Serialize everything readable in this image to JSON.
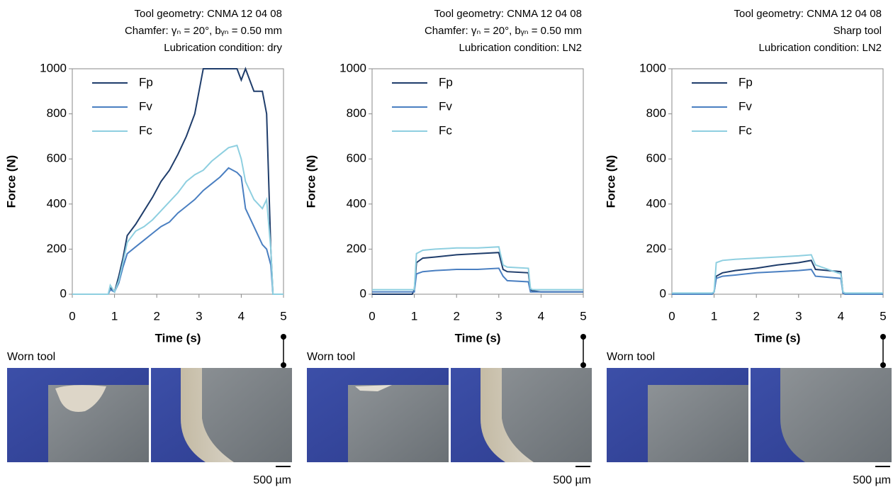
{
  "chart_data": [
    {
      "type": "line",
      "title": [
        "Tool geometry: CNMA 12 04 08",
        "Chamfer: γₙ = 20°, bᵧₙ = 0.50 mm",
        "Lubrication condition: dry"
      ],
      "x_label": "Time (s)",
      "y_label": "Force (N)",
      "x": [
        0,
        0.85,
        0.9,
        1.0,
        1.1,
        1.2,
        1.3,
        1.5,
        1.7,
        1.9,
        2.1,
        2.3,
        2.5,
        2.7,
        2.9,
        3.1,
        3.3,
        3.5,
        3.7,
        3.9,
        4.0,
        4.1,
        4.3,
        4.5,
        4.6,
        4.7,
        4.75,
        4.8,
        5
      ],
      "series": [
        {
          "name": "Fp",
          "color": "#1f3d6b",
          "values": [
            0,
            0,
            30,
            10,
            80,
            160,
            260,
            310,
            370,
            430,
            500,
            550,
            620,
            700,
            800,
            1000,
            1000,
            1000,
            1000,
            1000,
            950,
            1000,
            900,
            900,
            800,
            200,
            0,
            0,
            0
          ]
        },
        {
          "name": "Fv",
          "color": "#4a7fc1",
          "values": [
            0,
            0,
            20,
            10,
            50,
            120,
            180,
            210,
            240,
            270,
            300,
            320,
            360,
            390,
            420,
            460,
            490,
            520,
            560,
            540,
            520,
            380,
            300,
            220,
            200,
            130,
            0,
            0,
            0
          ]
        },
        {
          "name": "Fc",
          "color": "#8ecfe0",
          "values": [
            0,
            0,
            40,
            10,
            60,
            140,
            230,
            280,
            300,
            330,
            370,
            410,
            450,
            500,
            530,
            550,
            590,
            620,
            650,
            660,
            600,
            500,
            420,
            380,
            420,
            200,
            0,
            0,
            0
          ]
        }
      ],
      "xlim": [
        0,
        5
      ],
      "xticks": [
        0,
        1,
        2,
        3,
        4,
        5
      ],
      "ylim": [
        0,
        1000
      ],
      "yticks": [
        0,
        200,
        400,
        600,
        800,
        1000
      ]
    },
    {
      "type": "line",
      "title": [
        "Tool geometry: CNMA 12 04 08",
        "Chamfer: γₙ = 20°, bᵧₙ = 0.50 mm",
        "Lubrication condition: LN2"
      ],
      "x_label": "Time (s)",
      "y_label": "Force (N)",
      "x": [
        0,
        0.95,
        1.0,
        1.05,
        1.2,
        1.5,
        2,
        2.5,
        3,
        3.1,
        3.2,
        3.7,
        3.75,
        3.8,
        4,
        5
      ],
      "series": [
        {
          "name": "Fp",
          "color": "#1f3d6b",
          "values": [
            0,
            0,
            20,
            140,
            160,
            165,
            175,
            180,
            185,
            110,
            100,
            95,
            20,
            15,
            10,
            10
          ]
        },
        {
          "name": "Fv",
          "color": "#4a7fc1",
          "values": [
            10,
            10,
            10,
            90,
            100,
            105,
            110,
            110,
            115,
            80,
            60,
            55,
            10,
            10,
            10,
            10
          ]
        },
        {
          "name": "Fc",
          "color": "#8ecfe0",
          "values": [
            20,
            20,
            20,
            180,
            195,
            200,
            205,
            205,
            210,
            130,
            120,
            115,
            25,
            20,
            20,
            20
          ]
        }
      ],
      "xlim": [
        0,
        5
      ],
      "xticks": [
        0,
        1,
        2,
        3,
        4,
        5
      ],
      "ylim": [
        0,
        1000
      ],
      "yticks": [
        0,
        200,
        400,
        600,
        800,
        1000
      ]
    },
    {
      "type": "line",
      "title": [
        "Tool geometry: CNMA 12 04 08",
        "Sharp tool",
        "Lubrication condition: LN2"
      ],
      "x_label": "Time (s)",
      "y_label": "Force (N)",
      "x": [
        0,
        0.95,
        1.0,
        1.05,
        1.2,
        1.5,
        2,
        2.5,
        3,
        3.3,
        3.4,
        4.0,
        4.05,
        4.1,
        5
      ],
      "series": [
        {
          "name": "Fp",
          "color": "#1f3d6b",
          "values": [
            0,
            0,
            10,
            80,
            95,
            105,
            115,
            130,
            140,
            150,
            110,
            100,
            5,
            0,
            0
          ]
        },
        {
          "name": "Fv",
          "color": "#4a7fc1",
          "values": [
            0,
            0,
            10,
            70,
            80,
            85,
            95,
            100,
            105,
            110,
            80,
            70,
            5,
            0,
            0
          ]
        },
        {
          "name": "Fc",
          "color": "#8ecfe0",
          "values": [
            5,
            5,
            10,
            140,
            150,
            155,
            160,
            165,
            170,
            175,
            130,
            90,
            10,
            5,
            5
          ]
        }
      ],
      "xlim": [
        0,
        5
      ],
      "xticks": [
        0,
        1,
        2,
        3,
        4,
        5
      ],
      "ylim": [
        0,
        1000
      ],
      "yticks": [
        0,
        200,
        400,
        600,
        800,
        1000
      ]
    }
  ],
  "photos": [
    {
      "label": "Worn tool",
      "scale": "500 µm"
    },
    {
      "label": "Worn tool",
      "scale": "500 µm"
    },
    {
      "label": "Worn tool",
      "scale": "500 µm"
    }
  ]
}
